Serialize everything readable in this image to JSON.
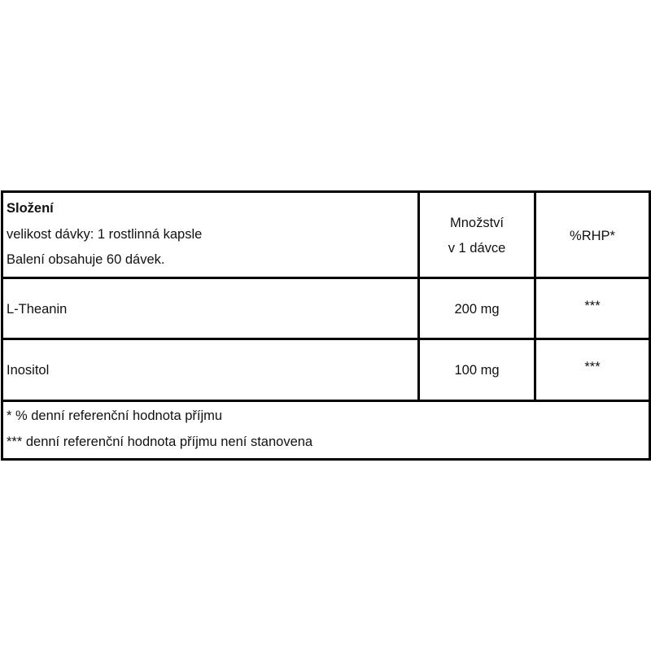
{
  "header": {
    "title": "Složení",
    "serving_size": "velikost dávky: 1 rostlinná kapsle",
    "package": "Balení obsahuje 60 dávek.",
    "amount_header_line1": "Množství",
    "amount_header_line2": "v 1 dávce",
    "rhp_header": "%RHP*"
  },
  "rows": [
    {
      "name": "L-Theanin",
      "amount": "200 mg",
      "rhp": "***"
    },
    {
      "name": "Inositol",
      "amount": "100 mg",
      "rhp": "***"
    }
  ],
  "footnotes": [
    "* % denní referenční hodnota příjmu",
    "*** denní referenční hodnota příjmu není stanovena"
  ]
}
